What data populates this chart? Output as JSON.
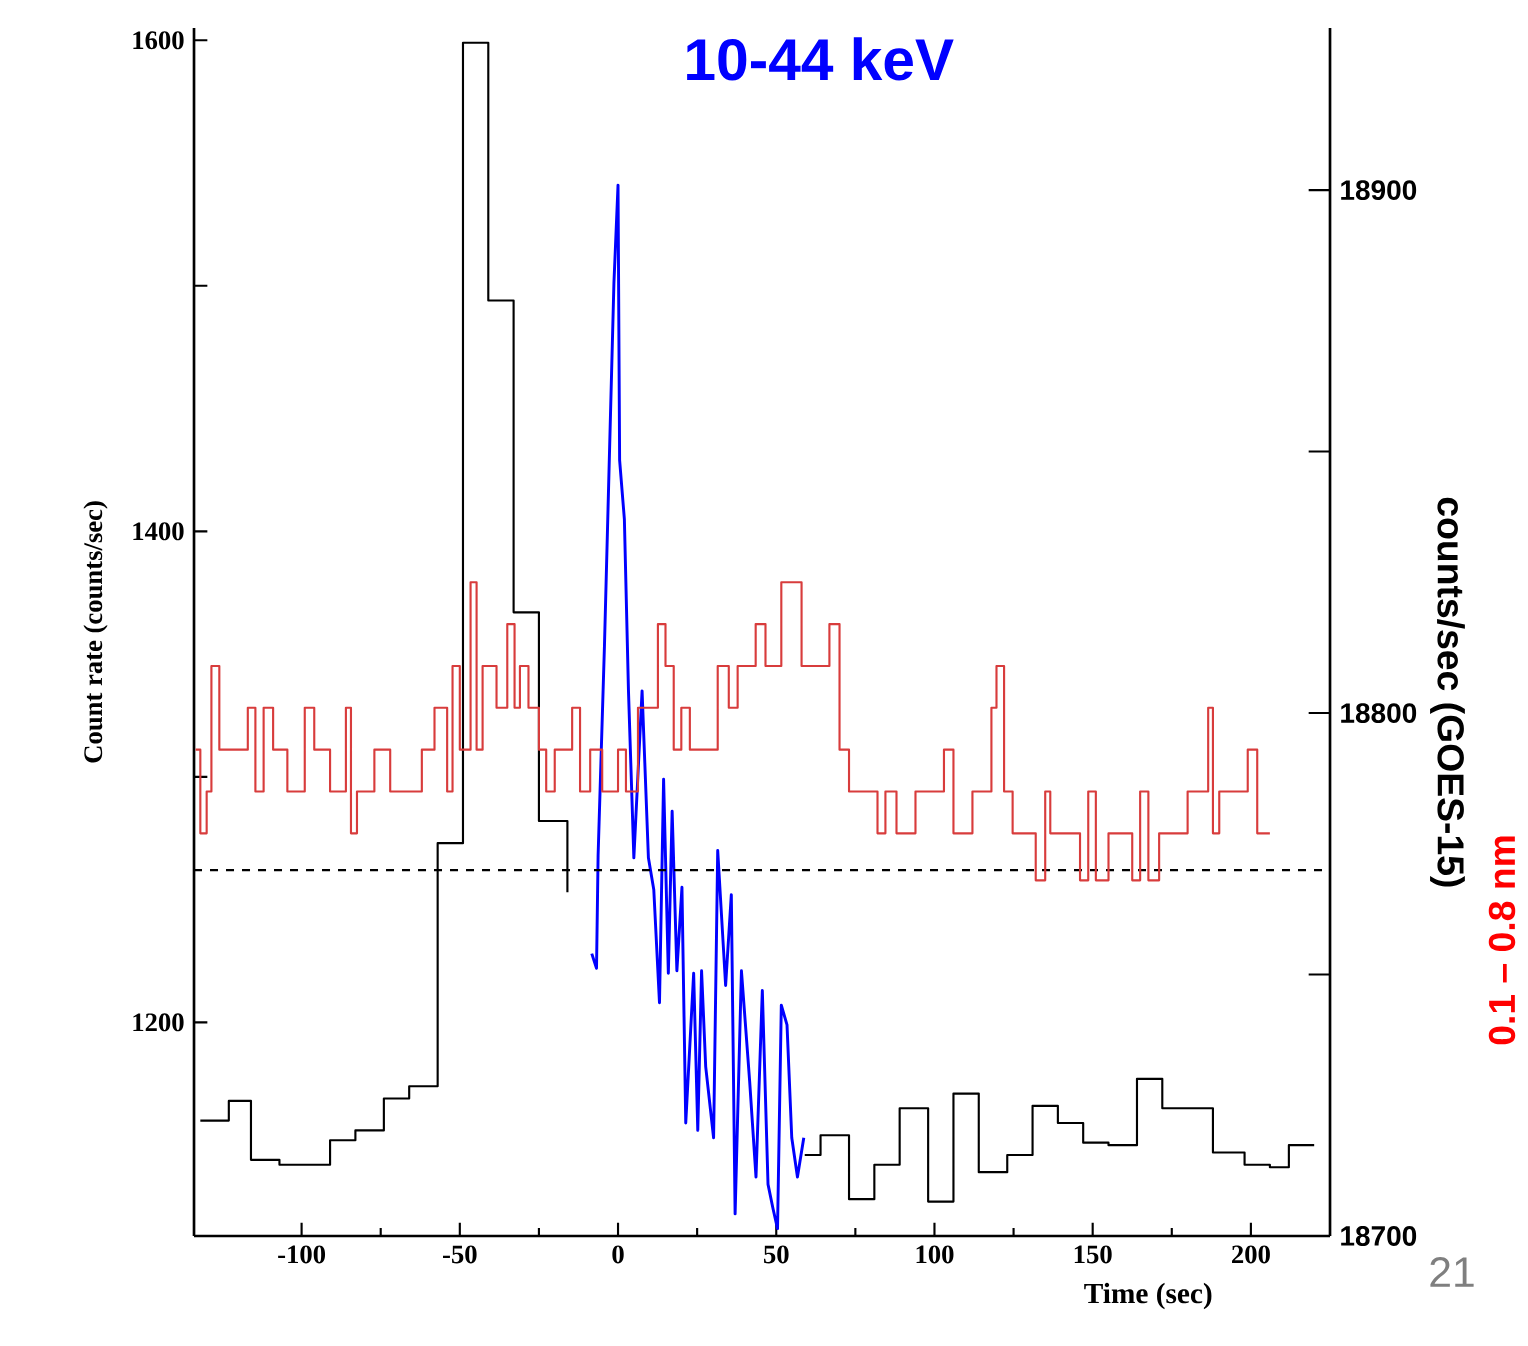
{
  "chart_data": {
    "type": "line",
    "xlabel": "Time (sec)",
    "ylabel": "Count rate (counts/sec)",
    "y2label": "counts/sec (GOES-15)",
    "annotations": [
      "0.1 – 0.8 nm",
      "21"
    ],
    "xlim": [
      -134,
      225
    ],
    "ylim": [
      1113,
      1605
    ],
    "y2lim": [
      18700,
      18931
    ],
    "xticks": [
      -100,
      -50,
      0,
      50,
      100,
      150,
      200
    ],
    "yticks": [
      1200,
      {
        "value": 1300,
        "label": null
      },
      1400,
      {
        "value": 1500,
        "label": null
      },
      1600
    ],
    "y2ticks": [
      18700,
      {
        "value": 18750,
        "label": null
      },
      18800,
      {
        "value": 18850,
        "label": null
      },
      18900
    ],
    "legend": false,
    "grid": false,
    "ref_lines": [
      {
        "axis": "y",
        "value": 1262,
        "color": "#000000",
        "line_style": "dashed"
      }
    ],
    "series": [
      {
        "type": "step",
        "color": "#000000",
        "x": [
          -132,
          -123,
          -116,
          -107,
          -91,
          -83,
          -74,
          -66,
          -57,
          -49,
          -41,
          -33,
          -25,
          -16,
          -8,
          59,
          64,
          73,
          81,
          89,
          98,
          106,
          114,
          123,
          131,
          139,
          147,
          155,
          164,
          172,
          188,
          198,
          206,
          212,
          220
        ],
        "values": [
          1160,
          1168,
          1144,
          1142,
          1152,
          1156,
          1169,
          1174,
          1273,
          1599,
          1494,
          1367,
          1282,
          1253,
          null,
          1146,
          1154,
          1128,
          1142,
          1165,
          1127,
          1171,
          1139,
          1146,
          1166,
          1159,
          1151,
          1150,
          1177,
          1165,
          1147,
          1142,
          1141,
          1150,
          1150
        ]
      },
      {
        "type": "step",
        "axis": "y2",
        "color": "#d83c3c",
        "x": [
          -133.5,
          -132,
          -130,
          -128.5,
          -126,
          -117,
          -114.6,
          -112,
          -109,
          -104.5,
          -99,
          -96,
          -91,
          -86,
          -84.4,
          -82.5,
          -77,
          -72,
          -62,
          -58,
          -54,
          -52.3,
          -50,
          -46.6,
          -44.7,
          -42.8,
          -38.4,
          -35,
          -32.7,
          -31,
          -28.3,
          -25,
          -22.7,
          -20,
          -14.5,
          -12,
          -8.8,
          -5,
          0,
          2.5,
          6.3,
          12.6,
          15,
          17.6,
          20,
          22.7,
          31.5,
          35,
          37.8,
          43.5,
          46.6,
          51.6,
          58,
          66.8,
          70,
          73,
          82,
          84.5,
          88,
          94,
          103,
          106,
          112,
          118,
          119.6,
          122,
          124.7,
          132,
          135,
          136.6,
          146,
          148.6,
          151,
          155,
          162.5,
          165,
          167.6,
          171,
          180,
          186.5,
          188,
          190,
          199,
          202,
          206
        ],
        "values": [
          18793,
          18777,
          18785,
          18809,
          18793,
          18801,
          18785,
          18801,
          18793,
          18785,
          18801,
          18793,
          18785,
          18801,
          18777,
          18785,
          18793,
          18785,
          18793,
          18801,
          18785,
          18809,
          18793,
          18825,
          18793,
          18809,
          18801,
          18817,
          18801,
          18809,
          18801,
          18793,
          18785,
          18793,
          18801,
          18785,
          18793,
          18785,
          18793,
          18785,
          18801,
          18817,
          18809,
          18793,
          18801,
          18793,
          18809,
          18801,
          18809,
          18817,
          18809,
          18825,
          18809,
          18817,
          18793,
          18785,
          18777,
          18785,
          18777,
          18785,
          18793,
          18777,
          18785,
          18801,
          18809,
          18785,
          18777,
          18768,
          18785,
          18777,
          18768,
          18785,
          18768,
          18777,
          18768,
          18785,
          18768,
          18777,
          18785,
          18801,
          18777,
          18785,
          18793,
          18777,
          18777
        ]
      },
      {
        "type": "line",
        "name": "10-44 keV",
        "color": "#0000ff",
        "x": [
          -8.3,
          -6.8,
          -6.3,
          -4.3,
          -1.3,
          0,
          0.5,
          2,
          3.3,
          5,
          7.6,
          9.6,
          11.3,
          13.1,
          14.4,
          15.9,
          17.1,
          18.6,
          20.2,
          21.4,
          23.9,
          25.2,
          26.4,
          27.7,
          30.2,
          31.5,
          34,
          35.8,
          37,
          39,
          41.6,
          43.6,
          45.6,
          47.4,
          49,
          50.4,
          51.6,
          53.4,
          54.9,
          56.7,
          58.7
        ],
        "values": [
          1228,
          1222,
          1268,
          1353,
          1501,
          1541,
          1429,
          1405,
          1335,
          1267,
          1335,
          1267,
          1254,
          1208,
          1299,
          1220,
          1286,
          1221,
          1255,
          1159,
          1220,
          1156,
          1221,
          1182,
          1153,
          1270,
          1215,
          1252,
          1122,
          1221,
          1176,
          1137,
          1213,
          1134,
          1124,
          1116,
          1207,
          1199,
          1153,
          1137,
          1153
        ]
      }
    ]
  }
}
